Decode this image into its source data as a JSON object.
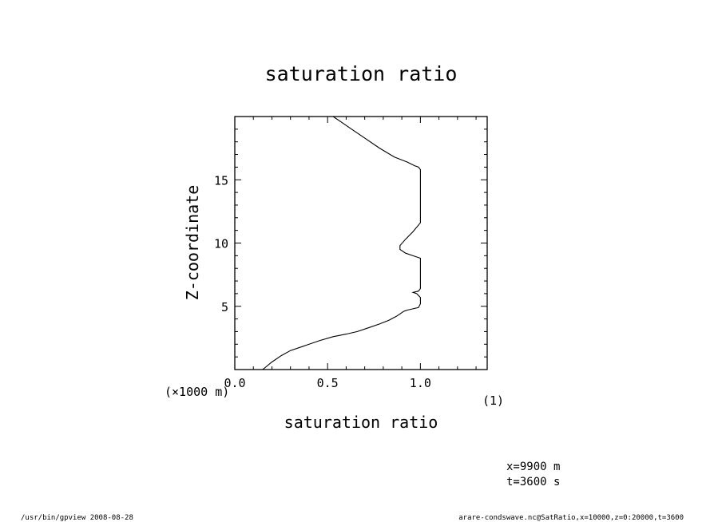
{
  "chart_data": {
    "type": "line",
    "title": "saturation ratio",
    "xlabel": "saturation ratio",
    "ylabel": "Z-coordinate",
    "x_unit": "(1)",
    "y_unit": "(×1000 m)",
    "xlim": [
      0,
      1.36
    ],
    "ylim": [
      0,
      20
    ],
    "x_ticks": [
      "0.0",
      "0.5",
      "1.0"
    ],
    "y_ticks": [
      "5",
      "10",
      "15"
    ],
    "x_tick_values": [
      0,
      0.5,
      1.0
    ],
    "y_tick_values": [
      5,
      10,
      15
    ],
    "grid": false,
    "series": [
      {
        "x": [
          0.15,
          0.2,
          0.25,
          0.3,
          0.38,
          0.46,
          0.53,
          0.6,
          0.66,
          0.72,
          0.78,
          0.83,
          0.87,
          0.89,
          0.91,
          0.93,
          0.96,
          0.99,
          1.0,
          1.0,
          0.98,
          0.96,
          0.99,
          1.0,
          1.0,
          0.96,
          0.92,
          0.89,
          0.89,
          0.92,
          0.96,
          1.0,
          1.0,
          1.0,
          1.0,
          0.99,
          0.97,
          0.93,
          0.86,
          0.78,
          0.7,
          0.63,
          0.57,
          0.53
        ],
        "y": [
          0.0,
          0.6,
          1.1,
          1.5,
          1.9,
          2.3,
          2.6,
          2.8,
          3.0,
          3.3,
          3.6,
          3.9,
          4.2,
          4.4,
          4.6,
          4.7,
          4.8,
          4.9,
          5.2,
          5.7,
          6.0,
          6.1,
          6.2,
          6.4,
          8.8,
          9.0,
          9.2,
          9.5,
          9.8,
          10.3,
          10.9,
          11.6,
          12.3,
          14.0,
          15.8,
          16.0,
          16.1,
          16.4,
          16.8,
          17.5,
          18.3,
          19.0,
          19.6,
          20.0
        ]
      }
    ]
  },
  "annotations": {
    "x_coord": "x=9900  m",
    "time": "t=3600  s"
  },
  "footer": {
    "left": "/usr/bin/gpview   2008-08-28",
    "right": "arare-condswave.nc@SatRatio,x=10000,z=0:20000,t=3600"
  }
}
